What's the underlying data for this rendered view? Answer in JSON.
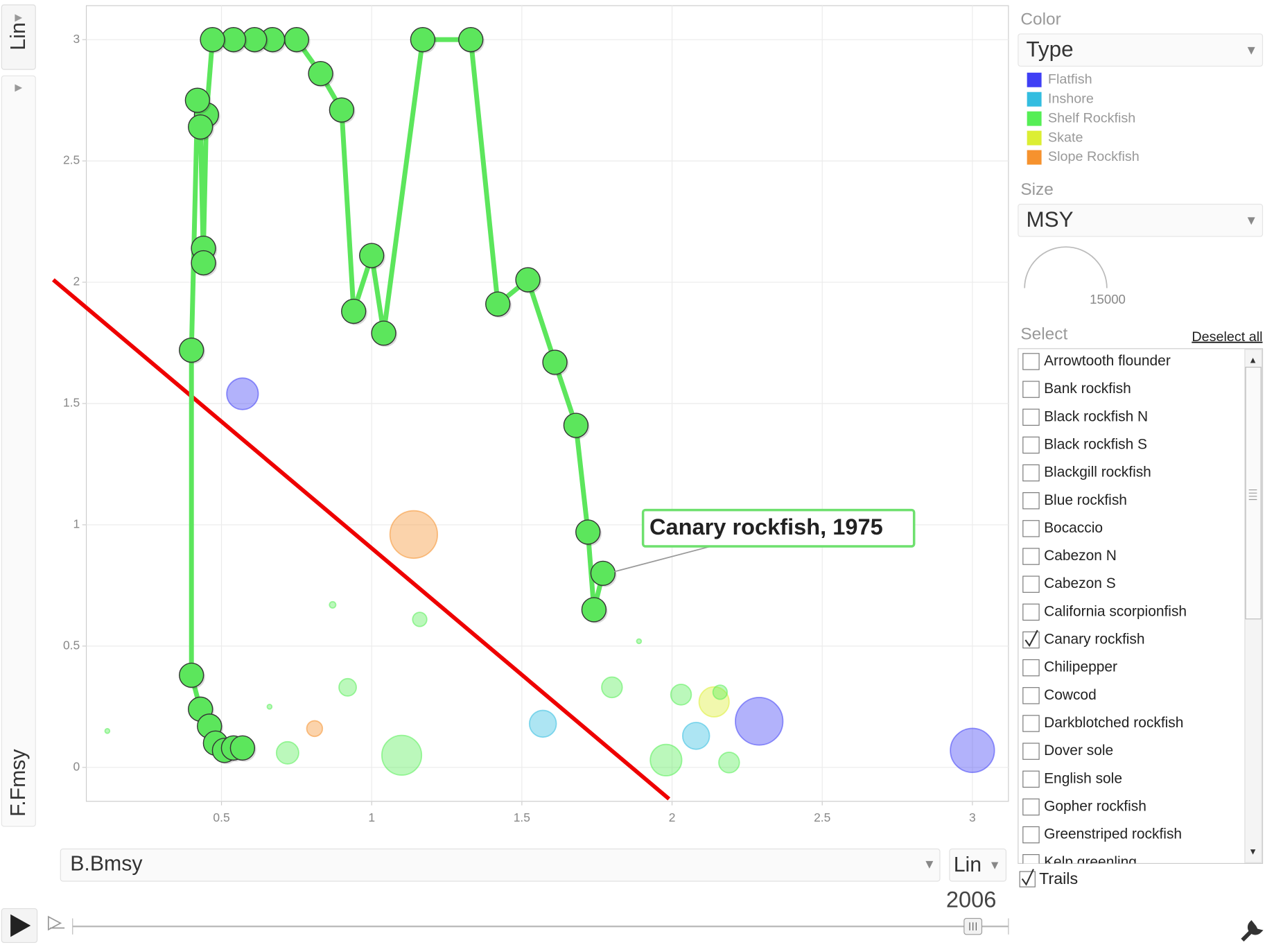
{
  "chart_data": {
    "type": "bubble",
    "x_label": "B.Bmsy",
    "y_label": "F.Fmsy",
    "xlim": [
      0.05,
      3.12
    ],
    "ylim": [
      -0.14,
      3.14
    ],
    "xticks": [
      0.5,
      1,
      1.5,
      2,
      2.5,
      3
    ],
    "yticks": [
      0,
      0.5,
      1,
      1.5,
      2,
      2.5,
      3
    ],
    "grid": true,
    "series": [
      {
        "name": "Canary rockfish",
        "color": "#5ce65c",
        "x": [
          1.77,
          1.74,
          1.72,
          1.68,
          1.61,
          1.52,
          1.42,
          1.33,
          1.17,
          1.04,
          1.0,
          0.94,
          0.9,
          0.83,
          0.75,
          0.67,
          0.61,
          0.54,
          0.47,
          0.45,
          0.44,
          0.44,
          0.43,
          0.42,
          0.4,
          0.4,
          0.43,
          0.46,
          0.48,
          0.51,
          0.54,
          0.57
        ],
        "y": [
          0.8,
          0.65,
          0.97,
          1.41,
          1.67,
          2.01,
          1.91,
          3.0,
          3.0,
          1.79,
          2.11,
          1.88,
          2.71,
          2.86,
          3.0,
          3.0,
          3.0,
          3.0,
          3.0,
          2.69,
          2.14,
          2.08,
          2.64,
          2.75,
          1.72,
          0.38,
          0.24,
          0.17,
          0.1,
          0.07,
          0.08,
          0.08
        ]
      }
    ],
    "bubbles": {
      "x": [
        0.57,
        1.14,
        0.87,
        1.16,
        1.89,
        0.92,
        0.66,
        0.12,
        0.81,
        0.72,
        1.1,
        1.57,
        1.8,
        2.03,
        2.14,
        2.16,
        2.08,
        2.29,
        1.98,
        2.19,
        3.0
      ],
      "y": [
        1.54,
        0.96,
        0.67,
        0.61,
        0.52,
        0.33,
        0.25,
        0.15,
        0.16,
        0.06,
        0.05,
        0.18,
        0.33,
        0.3,
        0.27,
        0.31,
        0.13,
        0.19,
        0.03,
        0.02,
        0.07
      ],
      "size": [
        2200,
        5000,
        90,
        450,
        50,
        670,
        50,
        50,
        550,
        1100,
        3500,
        1600,
        940,
        940,
        2000,
        450,
        1600,
        5000,
        2200,
        940,
        4300
      ],
      "group": [
        "Flatfish",
        "Slope Rockfish",
        "Shelf Rockfish",
        "Shelf Rockfish",
        "Shelf Rockfish",
        "Shelf Rockfish",
        "Shelf Rockfish",
        "Shelf Rockfish",
        "Slope Rockfish",
        "Shelf Rockfish",
        "Shelf Rockfish",
        "Inshore",
        "Shelf Rockfish",
        "Shelf Rockfish",
        "Skate",
        "Shelf Rockfish",
        "Inshore",
        "Flatfish",
        "Shelf Rockfish",
        "Shelf Rockfish",
        "Flatfish"
      ]
    },
    "legend": [
      {
        "name": "Flatfish",
        "color": "#3f3ff5"
      },
      {
        "name": "Inshore",
        "color": "#33bde0"
      },
      {
        "name": "Shelf Rockfish",
        "color": "#55ee55"
      },
      {
        "name": "Skate",
        "color": "#dcee33"
      },
      {
        "name": "Slope Rockfish",
        "color": "#f6922e"
      }
    ],
    "annotation": "Canary rockfish, 1975",
    "reference_line": {
      "color": "#ee0000",
      "x": [
        -0.06,
        1.99
      ],
      "y": [
        2.01,
        -0.13
      ]
    }
  },
  "ui": {
    "y_scale": "Lin",
    "x_scale": "Lin",
    "year": "2006",
    "color": {
      "label": "Color",
      "value": "Type"
    },
    "size": {
      "label": "Size",
      "value": "MSY",
      "legend": 15000
    },
    "select": {
      "label": "Select",
      "deselect": "Deselect all",
      "items": [
        {
          "label": "Arrowtooth flounder",
          "checked": false
        },
        {
          "label": "Bank rockfish",
          "checked": false
        },
        {
          "label": "Black rockfish N",
          "checked": false
        },
        {
          "label": "Black rockfish S",
          "checked": false
        },
        {
          "label": "Blackgill rockfish",
          "checked": false
        },
        {
          "label": "Blue rockfish",
          "checked": false
        },
        {
          "label": "Bocaccio",
          "checked": false
        },
        {
          "label": "Cabezon N",
          "checked": false
        },
        {
          "label": "Cabezon S",
          "checked": false
        },
        {
          "label": "California scorpionfish",
          "checked": false
        },
        {
          "label": "Canary rockfish",
          "checked": true
        },
        {
          "label": "Chilipepper",
          "checked": false
        },
        {
          "label": "Cowcod",
          "checked": false
        },
        {
          "label": "Darkblotched rockfish",
          "checked": false
        },
        {
          "label": "Dover sole",
          "checked": false
        },
        {
          "label": "English sole",
          "checked": false
        },
        {
          "label": "Gopher rockfish",
          "checked": false
        },
        {
          "label": "Greenstriped rockfish",
          "checked": false
        },
        {
          "label": "Kelp greenling",
          "checked": false
        }
      ]
    },
    "trails": {
      "label": "Trails",
      "checked": true
    }
  }
}
